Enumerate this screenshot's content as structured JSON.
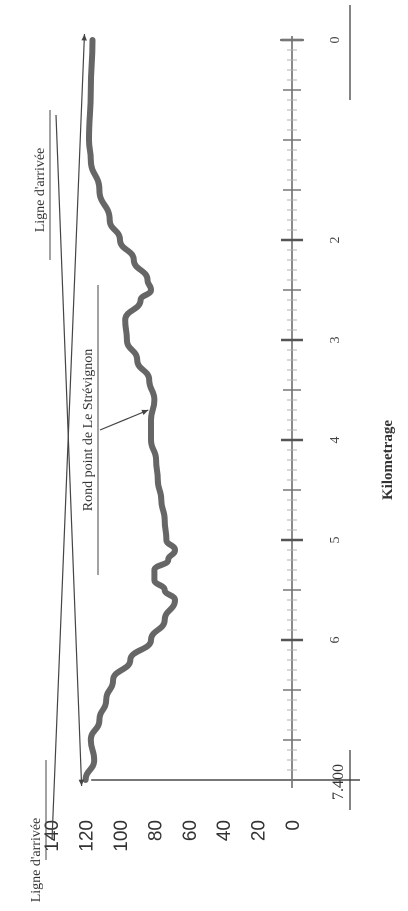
{
  "chart_data": {
    "type": "line",
    "title": "",
    "xlabel": "Kilometrage",
    "ylabel": "",
    "xlim": [
      0,
      7.4
    ],
    "ylim": [
      0,
      140
    ],
    "x_ticks": [
      "0",
      "2",
      "3",
      "4",
      "5",
      "6"
    ],
    "x_end_label": "7.400",
    "y_ticks": [
      "0",
      "20",
      "40",
      "60",
      "80",
      "100",
      "120",
      "140"
    ],
    "grid": false,
    "series": [
      {
        "color": "#666666",
        "points": [
          [
            0.0,
            116
          ],
          [
            0.5,
            117
          ],
          [
            1.0,
            118
          ],
          [
            1.2,
            117
          ],
          [
            1.5,
            112
          ],
          [
            1.8,
            106
          ],
          [
            2.0,
            100
          ],
          [
            2.2,
            92
          ],
          [
            2.4,
            84
          ],
          [
            2.5,
            82
          ],
          [
            2.6,
            88
          ],
          [
            2.8,
            97
          ],
          [
            3.0,
            96
          ],
          [
            3.2,
            90
          ],
          [
            3.4,
            83
          ],
          [
            3.6,
            80
          ],
          [
            3.8,
            82
          ],
          [
            4.0,
            82
          ],
          [
            4.2,
            79
          ],
          [
            4.4,
            78
          ],
          [
            4.6,
            76
          ],
          [
            4.8,
            74
          ],
          [
            5.0,
            73
          ],
          [
            5.1,
            68
          ],
          [
            5.2,
            72
          ],
          [
            5.3,
            80
          ],
          [
            5.4,
            80
          ],
          [
            5.5,
            74
          ],
          [
            5.6,
            68
          ],
          [
            5.8,
            74
          ],
          [
            6.0,
            82
          ],
          [
            6.2,
            94
          ],
          [
            6.4,
            104
          ],
          [
            6.6,
            108
          ],
          [
            6.8,
            112
          ],
          [
            7.0,
            117
          ],
          [
            7.2,
            115
          ],
          [
            7.4,
            120
          ]
        ]
      }
    ],
    "annotations": [
      {
        "text": "Ligne d'arrivée",
        "x": 0.0,
        "y": 116
      },
      {
        "text": "Rond point de Le Strévignon",
        "x": 3.7,
        "y": 80
      },
      {
        "text": "Ligne d'arrivée",
        "x": 7.4,
        "y": 120
      }
    ]
  }
}
